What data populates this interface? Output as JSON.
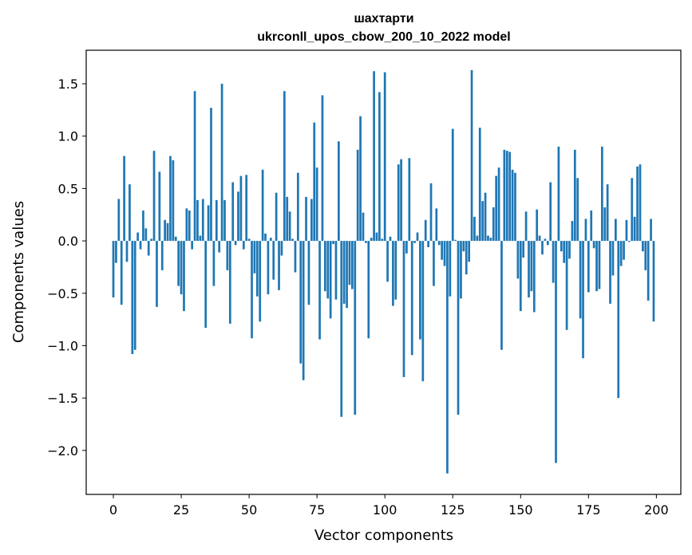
{
  "chart_data": {
    "type": "bar",
    "title": "шахтарти",
    "subtitle": "ukrconll_upos_cbow_200_10_2022 model",
    "xlabel": "Vector components",
    "ylabel": "Components values",
    "xlim": [
      -10,
      209
    ],
    "ylim": [
      -2.42,
      1.82
    ],
    "xticks": [
      0,
      25,
      50,
      75,
      100,
      125,
      150,
      175,
      200
    ],
    "yticks": [
      -2.0,
      -1.5,
      -1.0,
      -0.5,
      0.0,
      0.5,
      1.0,
      1.5
    ],
    "ytick_labels": [
      "−2.0",
      "−1.5",
      "−1.0",
      "−0.5",
      "0.0",
      "0.5",
      "1.0",
      "1.5"
    ],
    "color": "#1f77b4",
    "grid": false,
    "x": [
      0,
      1,
      2,
      3,
      4,
      5,
      6,
      7,
      8,
      9,
      10,
      11,
      12,
      13,
      14,
      15,
      16,
      17,
      18,
      19,
      20,
      21,
      22,
      23,
      24,
      25,
      26,
      27,
      28,
      29,
      30,
      31,
      32,
      33,
      34,
      35,
      36,
      37,
      38,
      39,
      40,
      41,
      42,
      43,
      44,
      45,
      46,
      47,
      48,
      49,
      50,
      51,
      52,
      53,
      54,
      55,
      56,
      57,
      58,
      59,
      60,
      61,
      62,
      63,
      64,
      65,
      66,
      67,
      68,
      69,
      70,
      71,
      72,
      73,
      74,
      75,
      76,
      77,
      78,
      79,
      80,
      81,
      82,
      83,
      84,
      85,
      86,
      87,
      88,
      89,
      90,
      91,
      92,
      93,
      94,
      95,
      96,
      97,
      98,
      99,
      100,
      101,
      102,
      103,
      104,
      105,
      106,
      107,
      108,
      109,
      110,
      111,
      112,
      113,
      114,
      115,
      116,
      117,
      118,
      119,
      120,
      121,
      122,
      123,
      124,
      125,
      126,
      127,
      128,
      129,
      130,
      131,
      132,
      133,
      134,
      135,
      136,
      137,
      138,
      139,
      140,
      141,
      142,
      143,
      144,
      145,
      146,
      147,
      148,
      149,
      150,
      151,
      152,
      153,
      154,
      155,
      156,
      157,
      158,
      159,
      160,
      161,
      162,
      163,
      164,
      165,
      166,
      167,
      168,
      169,
      170,
      171,
      172,
      173,
      174,
      175,
      176,
      177,
      178,
      179,
      180,
      181,
      182,
      183,
      184,
      185,
      186,
      187,
      188,
      189,
      190,
      191,
      192,
      193,
      194,
      195,
      196,
      197,
      198,
      199
    ],
    "values": [
      -0.54,
      -0.21,
      0.4,
      -0.61,
      0.81,
      -0.2,
      0.54,
      -1.08,
      -1.04,
      0.08,
      -0.08,
      0.29,
      0.12,
      -0.14,
      0.02,
      0.86,
      -0.63,
      0.66,
      -0.28,
      0.2,
      0.17,
      0.81,
      0.77,
      0.04,
      -0.43,
      -0.51,
      -0.67,
      0.31,
      0.29,
      -0.08,
      1.43,
      0.39,
      0.05,
      0.4,
      -0.83,
      0.34,
      1.27,
      -0.43,
      0.39,
      -0.11,
      1.5,
      0.39,
      -0.28,
      -0.79,
      0.56,
      -0.04,
      0.47,
      0.62,
      -0.08,
      0.63,
      0.02,
      -0.93,
      -0.31,
      -0.53,
      -0.77,
      0.68,
      0.07,
      -0.51,
      0.03,
      -0.37,
      0.46,
      -0.47,
      -0.14,
      1.43,
      0.42,
      0.28,
      0.02,
      -0.3,
      0.65,
      -1.17,
      -1.33,
      0.42,
      -0.61,
      0.4,
      1.13,
      0.7,
      -0.94,
      1.39,
      -0.48,
      -0.55,
      -0.74,
      -0.03,
      -0.56,
      0.95,
      -1.68,
      -0.6,
      -0.64,
      -0.42,
      -0.46,
      -1.66,
      0.87,
      1.19,
      0.27,
      -0.02,
      -0.93,
      0.03,
      1.62,
      0.08,
      1.42,
      0.02,
      1.61,
      -0.39,
      0.04,
      -0.62,
      -0.56,
      0.73,
      0.78,
      -1.3,
      -0.12,
      0.79,
      -1.09,
      -0.02,
      0.08,
      -0.94,
      -1.34,
      0.2,
      -0.06,
      0.55,
      -0.43,
      0.31,
      -0.04,
      -0.18,
      -0.24,
      -2.22,
      -0.53,
      1.07,
      0.01,
      -1.66,
      -0.55,
      -0.1,
      -0.32,
      -0.2,
      1.63,
      0.23,
      0.05,
      1.08,
      0.38,
      0.46,
      0.05,
      0.03,
      0.32,
      0.62,
      0.7,
      -1.04,
      0.87,
      0.86,
      0.85,
      0.68,
      0.65,
      -0.36,
      -0.67,
      -0.16,
      0.28,
      -0.54,
      -0.48,
      -0.68,
      0.3,
      0.05,
      -0.13,
      0.02,
      -0.04,
      0.56,
      -0.4,
      -2.12,
      0.9,
      -0.1,
      -0.21,
      -0.85,
      -0.17,
      0.19,
      0.87,
      0.6,
      -0.74,
      -1.12,
      0.21,
      -0.49,
      0.29,
      -0.07,
      -0.48,
      -0.46,
      0.9,
      0.32,
      0.54,
      -0.6,
      -0.33,
      0.21,
      -1.5,
      -0.24,
      -0.18,
      0.2,
      -0.01,
      0.6,
      0.23,
      0.71,
      0.73,
      -0.1,
      -0.28,
      -0.57,
      0.21,
      -0.77
    ]
  }
}
